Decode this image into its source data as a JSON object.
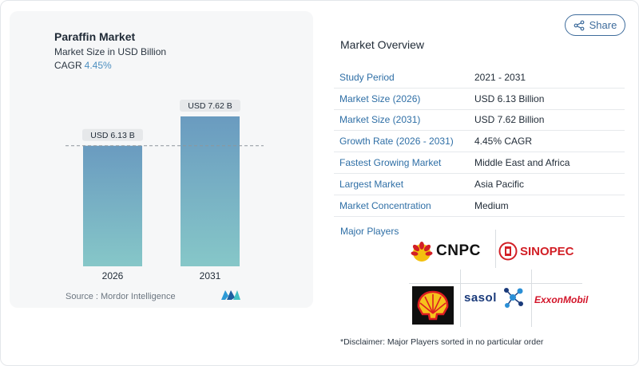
{
  "chart": {
    "title": "Paraffin Market",
    "subtitle": "Market Size in USD Billion",
    "cagr_label": "CAGR",
    "cagr_value": "4.45%",
    "source": "Source :  Mordor Intelligence"
  },
  "chart_data": {
    "type": "bar",
    "categories": [
      "2026",
      "2031"
    ],
    "values": [
      6.13,
      7.62
    ],
    "data_labels": [
      "USD 6.13 B",
      "USD 7.62 B"
    ],
    "reference_line_value": 6.13,
    "ylim": [
      0,
      7.62
    ],
    "colors": {
      "bar_top": "#6a9bc0",
      "bar_bottom": "#86c7c8",
      "label_bg": "#e6e8ea",
      "reference_line": "#8e959c"
    }
  },
  "share": {
    "label": "Share",
    "icon": "share-icon"
  },
  "overview": {
    "title": "Market Overview",
    "rows": [
      {
        "key": "Study Period",
        "value": "2021 - 2031"
      },
      {
        "key": "Market Size (2026)",
        "value": "USD 6.13 Billion"
      },
      {
        "key": "Market Size (2031)",
        "value": "USD 7.62 Billion"
      },
      {
        "key": "Growth Rate (2026 - 2031)",
        "value": "4.45% CAGR"
      },
      {
        "key": "Fastest Growing Market",
        "value": "Middle East and Africa"
      },
      {
        "key": "Largest Market",
        "value": "Asia Pacific"
      },
      {
        "key": "Market Concentration",
        "value": "Medium"
      }
    ]
  },
  "players": {
    "title": "Major Players",
    "logos": [
      {
        "name": "CNPC",
        "text": "CNPC",
        "color": "#d21f26"
      },
      {
        "name": "SINOPEC",
        "text": "SINOPEC",
        "color": "#d21f26"
      },
      {
        "name": "Shell",
        "text": "",
        "color": "#f6c21c"
      },
      {
        "name": "Sasol",
        "text": "sasol",
        "color": "#1a3a7a"
      },
      {
        "name": "ExxonMobil",
        "text": "ExxonMobil",
        "color": "#d3152a"
      }
    ],
    "disclaimer": "*Disclaimer: Major Players sorted in no particular order"
  },
  "brand": {
    "accent": "#2f6fa6",
    "share_border": "#3e6c9c"
  }
}
